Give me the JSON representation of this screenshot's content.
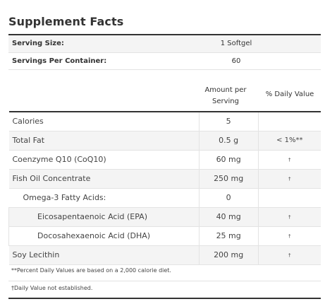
{
  "title": "Supplement Facts",
  "serving": [
    {
      "label": "Serving Size:",
      "value": "1 Softgel"
    },
    {
      "label": "Servings Per Container:",
      "value": "60"
    }
  ],
  "headers": {
    "amount_line1": "Amount per",
    "amount_line2": "Serving",
    "daily_value": "% Daily Value"
  },
  "rows": [
    {
      "name": "Calories",
      "amount": "5",
      "dv": ""
    },
    {
      "name": "Total Fat",
      "amount": "0.5 g",
      "dv": "< 1%**"
    },
    {
      "name": "Coenzyme Q10 (CoQ10)",
      "amount": "60 mg",
      "dv": "†"
    },
    {
      "name": "Fish Oil Concentrate",
      "amount": "250 mg",
      "dv": "†"
    },
    {
      "name": "Omega-3 Fatty Acids:",
      "amount": "0",
      "dv": ""
    },
    {
      "name": "Eicosapentaenoic Acid (EPA)",
      "amount": "40 mg",
      "dv": "†"
    },
    {
      "name": "Docosahexaenoic Acid (DHA)",
      "amount": "25 mg",
      "dv": "†"
    },
    {
      "name": "Soy Lecithin",
      "amount": "200 mg",
      "dv": "†"
    }
  ],
  "footnotes": {
    "percent_note": "**Percent Daily Values are based on a 2,000 calorie diet.",
    "dagger_note": "†Daily Value not established."
  }
}
